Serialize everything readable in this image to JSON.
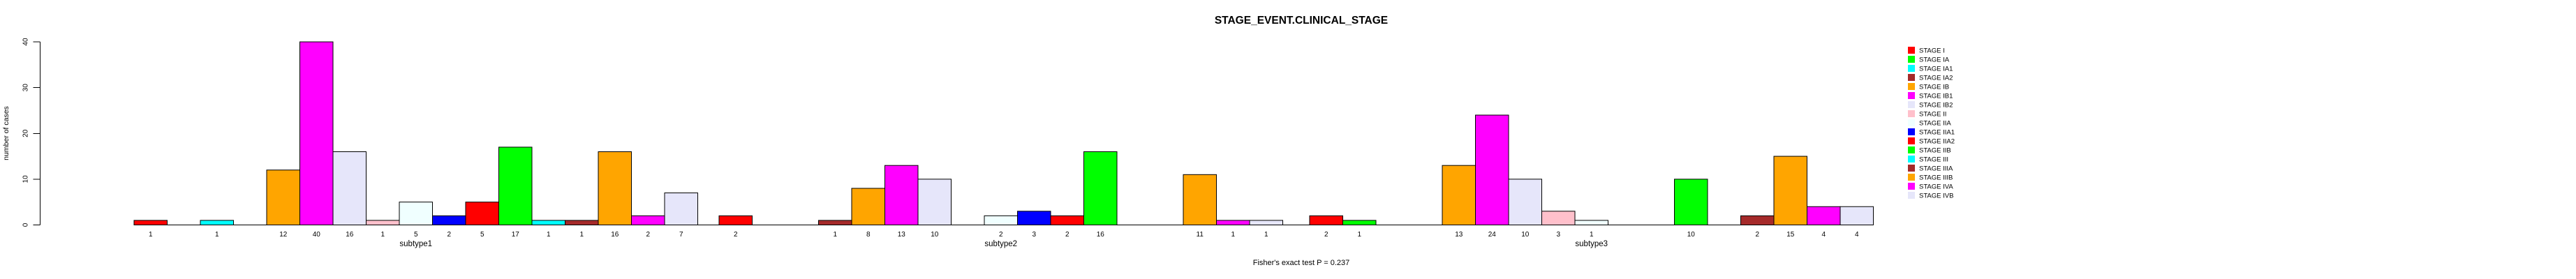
{
  "chart_data": {
    "type": "bar",
    "title": "STAGE_EVENT.CLINICAL_STAGE",
    "ylabel": "number of cases",
    "footer": "Fisher's exact test P = 0.237",
    "ylim": [
      0,
      40
    ],
    "yticks": [
      0,
      10,
      20,
      30,
      40
    ],
    "grid": false,
    "legend_position": "right",
    "categories": [
      "STAGE I",
      "STAGE IA",
      "STAGE IA1",
      "STAGE IA2",
      "STAGE IB",
      "STAGE IB1",
      "STAGE IB2",
      "STAGE II",
      "STAGE IIA",
      "STAGE IIA1",
      "STAGE IIA2",
      "STAGE IIB",
      "STAGE III",
      "STAGE IIIA",
      "STAGE IIIB",
      "STAGE IVA",
      "STAGE IVB"
    ],
    "colors": [
      "#FF0000",
      "#00FF00",
      "#00FFFF",
      "#A52A2A",
      "#FFA500",
      "#FF00FF",
      "#E6E6FA",
      "#FFC0CB",
      "#F0FFFF",
      "#0000FF",
      "#FF0000",
      "#00FF00",
      "#00FFFF",
      "#A52A2A",
      "#FFA500",
      "#FF00FF",
      "#E6E6FA"
    ],
    "series": [
      {
        "name": "subtype1",
        "values": [
          1,
          0,
          1,
          0,
          12,
          40,
          16,
          1,
          5,
          2,
          5,
          17,
          1,
          1,
          16,
          2,
          7
        ]
      },
      {
        "name": "subtype2",
        "values": [
          2,
          0,
          0,
          1,
          8,
          13,
          10,
          0,
          2,
          3,
          2,
          16,
          0,
          0,
          11,
          1,
          1
        ]
      },
      {
        "name": "subtype3",
        "values": [
          2,
          1,
          0,
          0,
          13,
          24,
          10,
          3,
          1,
          0,
          0,
          10,
          0,
          2,
          15,
          4,
          4
        ]
      }
    ]
  }
}
